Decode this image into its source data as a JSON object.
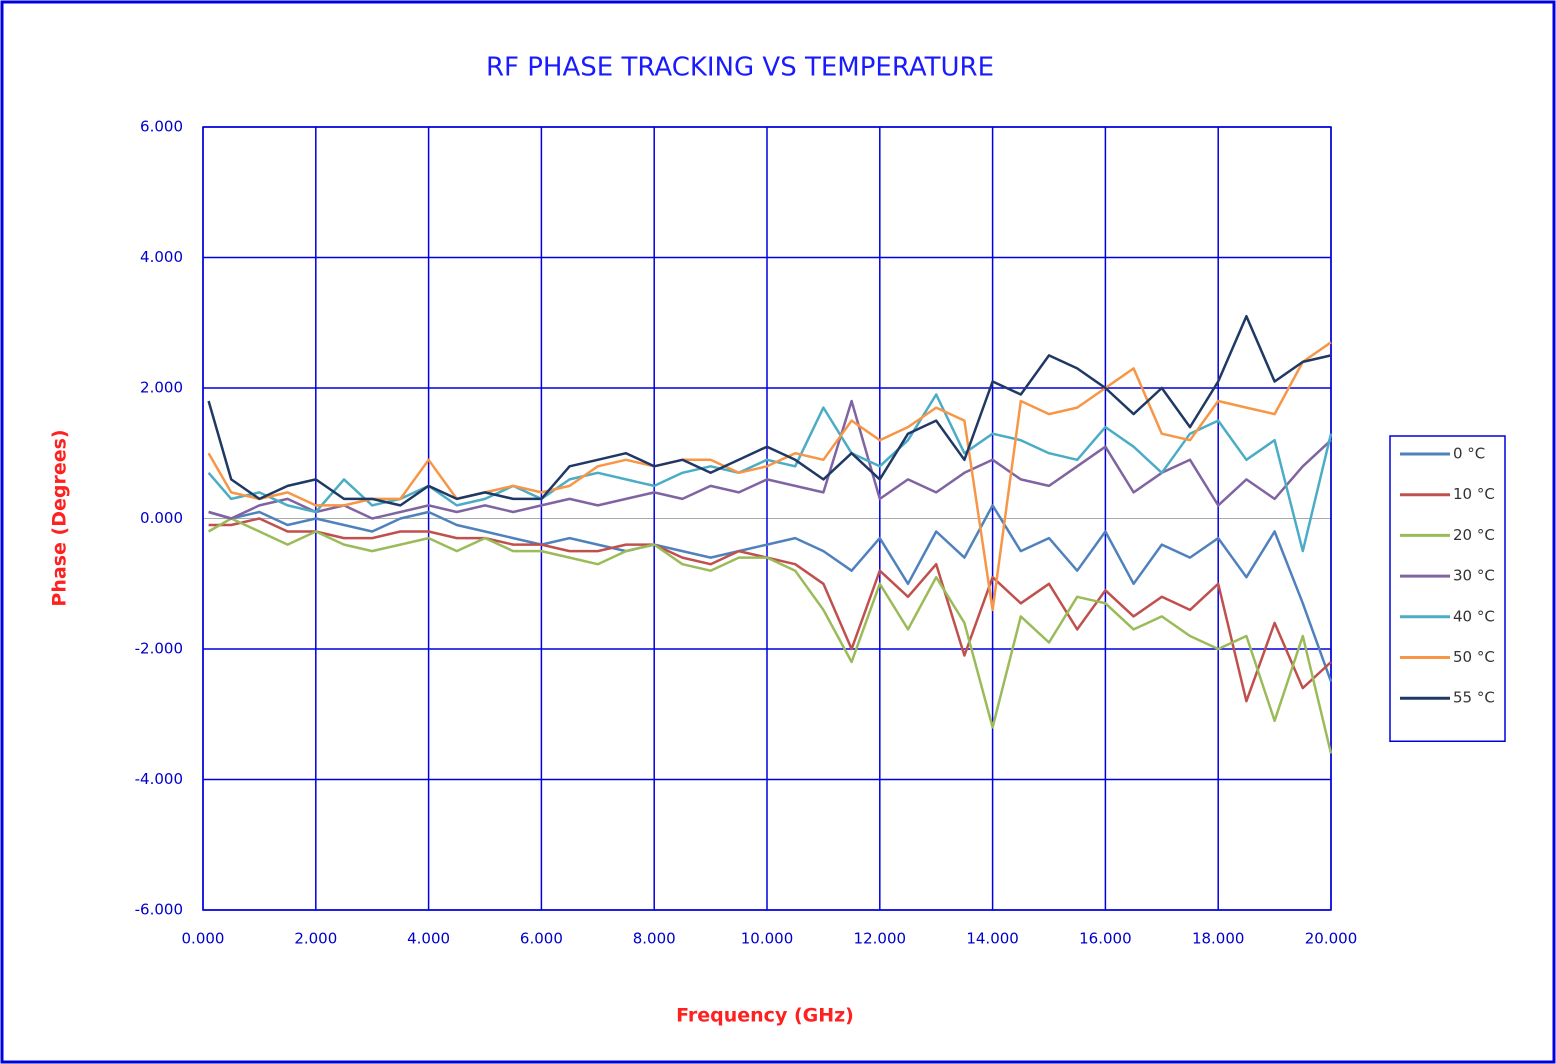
{
  "chart_data": {
    "type": "line",
    "title": "RF PHASE TRACKING VS TEMPERATURE",
    "x_label": "Frequency (GHz)",
    "y_label": "Phase (Degrees)",
    "x": [
      0.1,
      0.5,
      1,
      1.5,
      2,
      2.5,
      3,
      3.5,
      4,
      4.5,
      5,
      5.5,
      6,
      6.5,
      7,
      7.5,
      8,
      8.5,
      9,
      9.5,
      10,
      10.5,
      11,
      11.5,
      12,
      12.5,
      13,
      13.5,
      14,
      14.5,
      15,
      15.5,
      16,
      16.5,
      17,
      17.5,
      18,
      18.5,
      19,
      19.5,
      20
    ],
    "series": [
      {
        "name": "0 °C",
        "color": "#4f81bd",
        "values": [
          0.1,
          0,
          0.1,
          -0.1,
          0,
          -0.1,
          -0.2,
          0,
          0.1,
          -0.1,
          -0.2,
          -0.3,
          -0.4,
          -0.3,
          -0.4,
          -0.5,
          -0.4,
          -0.5,
          -0.6,
          -0.5,
          -0.4,
          -0.3,
          -0.5,
          -0.8,
          -0.3,
          -1.0,
          -0.2,
          -0.6,
          0.2,
          -0.5,
          -0.3,
          -0.8,
          -0.2,
          -1.0,
          -0.4,
          -0.6,
          -0.3,
          -0.9,
          -0.2,
          -1.3,
          -2.5
        ]
      },
      {
        "name": "10 °C",
        "color": "#c0504d",
        "values": [
          -0.1,
          -0.1,
          0,
          -0.2,
          -0.2,
          -0.3,
          -0.3,
          -0.2,
          -0.2,
          -0.3,
          -0.3,
          -0.4,
          -0.4,
          -0.5,
          -0.5,
          -0.4,
          -0.4,
          -0.6,
          -0.7,
          -0.5,
          -0.6,
          -0.7,
          -1.0,
          -2.0,
          -0.8,
          -1.2,
          -0.7,
          -2.1,
          -0.9,
          -1.3,
          -1.0,
          -1.7,
          -1.1,
          -1.5,
          -1.2,
          -1.4,
          -1.0,
          -2.8,
          -1.6,
          -2.6,
          -2.2
        ]
      },
      {
        "name": "20 °C",
        "color": "#9bbb59",
        "values": [
          -0.2,
          0,
          -0.2,
          -0.4,
          -0.2,
          -0.4,
          -0.5,
          -0.4,
          -0.3,
          -0.5,
          -0.3,
          -0.5,
          -0.5,
          -0.6,
          -0.7,
          -0.5,
          -0.4,
          -0.7,
          -0.8,
          -0.6,
          -0.6,
          -0.8,
          -1.4,
          -2.2,
          -1.0,
          -1.7,
          -0.9,
          -1.6,
          -3.2,
          -1.5,
          -1.9,
          -1.2,
          -1.3,
          -1.7,
          -1.5,
          -1.8,
          -2.0,
          -1.8,
          -3.1,
          -1.8,
          -3.6
        ]
      },
      {
        "name": "30 °C",
        "color": "#8064a2",
        "values": [
          0.1,
          0,
          0.2,
          0.3,
          0.1,
          0.2,
          0,
          0.1,
          0.2,
          0.1,
          0.2,
          0.1,
          0.2,
          0.3,
          0.2,
          0.3,
          0.4,
          0.3,
          0.5,
          0.4,
          0.6,
          0.5,
          0.4,
          1.8,
          0.3,
          0.6,
          0.4,
          0.7,
          0.9,
          0.6,
          0.5,
          0.8,
          1.1,
          0.4,
          0.7,
          0.9,
          0.2,
          0.6,
          0.3,
          0.8,
          1.2
        ]
      },
      {
        "name": "40 °C",
        "color": "#4bacc6",
        "values": [
          0.7,
          0.3,
          0.4,
          0.2,
          0.1,
          0.6,
          0.2,
          0.3,
          0.5,
          0.2,
          0.3,
          0.5,
          0.3,
          0.6,
          0.7,
          0.6,
          0.5,
          0.7,
          0.8,
          0.7,
          0.9,
          0.8,
          1.7,
          1.0,
          0.8,
          1.2,
          1.9,
          1.0,
          1.3,
          1.2,
          1.0,
          0.9,
          1.4,
          1.1,
          0.7,
          1.3,
          1.5,
          0.9,
          1.2,
          -0.5,
          1.3
        ]
      },
      {
        "name": "50 °C",
        "color": "#f79646",
        "values": [
          1.0,
          0.4,
          0.3,
          0.4,
          0.2,
          0.2,
          0.3,
          0.3,
          0.9,
          0.3,
          0.4,
          0.5,
          0.4,
          0.5,
          0.8,
          0.9,
          0.8,
          0.9,
          0.9,
          0.7,
          0.8,
          1.0,
          0.9,
          1.5,
          1.2,
          1.4,
          1.7,
          1.5,
          -1.4,
          1.8,
          1.6,
          1.7,
          2.0,
          2.3,
          1.3,
          1.2,
          1.8,
          1.7,
          1.6,
          2.4,
          2.7
        ]
      },
      {
        "name": "55 °C",
        "color": "#1f3864",
        "values": [
          1.8,
          0.6,
          0.3,
          0.5,
          0.6,
          0.3,
          0.3,
          0.2,
          0.5,
          0.3,
          0.4,
          0.3,
          0.3,
          0.8,
          0.9,
          1.0,
          0.8,
          0.9,
          0.7,
          0.9,
          1.1,
          0.9,
          0.6,
          1.0,
          0.6,
          1.3,
          1.5,
          0.9,
          2.1,
          1.9,
          2.5,
          2.3,
          2.0,
          1.6,
          2.0,
          1.4,
          2.1,
          3.1,
          2.1,
          2.4,
          2.5
        ]
      }
    ],
    "xlim": [
      0,
      20
    ],
    "xticks": [
      {
        "value": 0,
        "label": "0.000"
      },
      {
        "value": 2,
        "label": "2.000"
      },
      {
        "value": 4,
        "label": "4.000"
      },
      {
        "value": 6,
        "label": "6.000"
      },
      {
        "value": 8,
        "label": "8.000"
      },
      {
        "value": 10,
        "label": "10.000"
      },
      {
        "value": 12,
        "label": "12.000"
      },
      {
        "value": 14,
        "label": "14.000"
      },
      {
        "value": 16,
        "label": "16.000"
      },
      {
        "value": 18,
        "label": "18.000"
      },
      {
        "value": 20,
        "label": "20.000"
      }
    ],
    "ylim": [
      -6,
      6
    ],
    "yticks": [
      {
        "value": -6,
        "label": "-6.000"
      },
      {
        "value": -4,
        "label": "-4.000"
      },
      {
        "value": -2,
        "label": "-2.000"
      },
      {
        "value": 0,
        "label": "0.000"
      },
      {
        "value": 2,
        "label": "2.000"
      },
      {
        "value": 4,
        "label": "4.000"
      },
      {
        "value": 6,
        "label": "6.000"
      }
    ],
    "grid": true,
    "legend": "right"
  }
}
